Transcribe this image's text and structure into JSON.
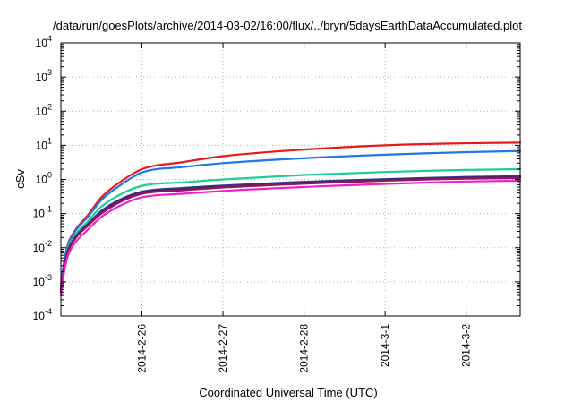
{
  "chart_data": {
    "type": "line",
    "title": "/data/run/goesPlots/archive/2014-03-02/16:00/flux/../bryn/5daysEarthDataAccumulated.plot",
    "xlabel": "Coordinated Universal Time (UTC)",
    "ylabel": "cSv",
    "y_scale": "log",
    "ylim": [
      0.0001,
      10000
    ],
    "y_ticks": [
      {
        "value": 0.0001,
        "base": "10",
        "exp": "-4"
      },
      {
        "value": 0.001,
        "base": "10",
        "exp": "-3"
      },
      {
        "value": 0.01,
        "base": "10",
        "exp": "-2"
      },
      {
        "value": 0.1,
        "base": "10",
        "exp": "-1"
      },
      {
        "value": 1,
        "base": "10",
        "exp": "0"
      },
      {
        "value": 10,
        "base": "10",
        "exp": "1"
      },
      {
        "value": 100,
        "base": "10",
        "exp": "2"
      },
      {
        "value": 1000,
        "base": "10",
        "exp": "3"
      },
      {
        "value": 10000,
        "base": "10",
        "exp": "4"
      }
    ],
    "xlim": [
      "2014-02-25 00:00",
      "2014-03-02 16:00"
    ],
    "x_ticks": [
      {
        "value": "2014-02-26 00:00",
        "label": "2014-2-26"
      },
      {
        "value": "2014-02-27 00:00",
        "label": "2014-2-27"
      },
      {
        "value": "2014-02-28 00:00",
        "label": "2014-2-28"
      },
      {
        "value": "2014-03-01 00:00",
        "label": "2014-3-1"
      },
      {
        "value": "2014-03-02 00:00",
        "label": "2014-3-2"
      }
    ],
    "grid": true,
    "x": [
      "2014-02-25 00:00",
      "2014-02-25 01:00",
      "2014-02-25 02:00",
      "2014-02-25 04:00",
      "2014-02-25 08:00",
      "2014-02-25 12:00",
      "2014-02-25 18:00",
      "2014-02-26 00:00",
      "2014-02-26 12:00",
      "2014-02-27 00:00",
      "2014-02-28 00:00",
      "2014-03-01 00:00",
      "2014-03-02 00:00",
      "2014-03-02 16:00"
    ],
    "series": [
      {
        "color": "#e41a1c",
        "values": [
          0.0008,
          0.004,
          0.012,
          0.03,
          0.09,
          0.3,
          0.9,
          2.0,
          3.2,
          4.8,
          7.5,
          10.0,
          11.5,
          12.0
        ]
      },
      {
        "color": "#1f78e4",
        "values": [
          0.0008,
          0.004,
          0.011,
          0.028,
          0.08,
          0.25,
          0.72,
          1.6,
          2.3,
          3.0,
          4.2,
          5.3,
          6.3,
          6.8
        ]
      },
      {
        "color": "#1fcc9a",
        "values": [
          0.0007,
          0.003,
          0.009,
          0.022,
          0.06,
          0.16,
          0.38,
          0.65,
          0.82,
          1.0,
          1.35,
          1.65,
          1.9,
          2.0
        ]
      },
      {
        "color": "#2a3b8f",
        "values": [
          0.0006,
          0.003,
          0.008,
          0.019,
          0.05,
          0.12,
          0.27,
          0.44,
          0.56,
          0.66,
          0.85,
          1.02,
          1.18,
          1.25
        ]
      },
      {
        "color": "#5c1a6b",
        "values": [
          0.0006,
          0.0028,
          0.0075,
          0.018,
          0.047,
          0.11,
          0.25,
          0.41,
          0.52,
          0.62,
          0.8,
          0.97,
          1.12,
          1.18
        ]
      },
      {
        "color": "#8a1a5a",
        "values": [
          0.0005,
          0.0025,
          0.007,
          0.017,
          0.044,
          0.1,
          0.23,
          0.38,
          0.48,
          0.58,
          0.75,
          0.92,
          1.05,
          1.1
        ]
      },
      {
        "color": "#ee22cc",
        "values": [
          0.0004,
          0.002,
          0.0055,
          0.013,
          0.034,
          0.08,
          0.18,
          0.3,
          0.38,
          0.46,
          0.6,
          0.74,
          0.87,
          0.92
        ]
      }
    ]
  }
}
